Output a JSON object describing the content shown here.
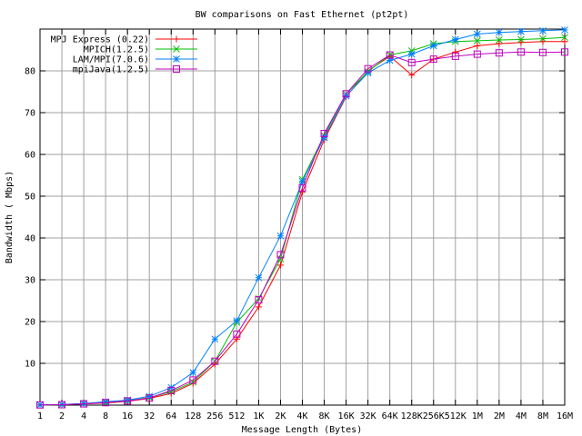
{
  "chart_data": {
    "type": "line",
    "title": "BW comparisons on Fast Ethernet (pt2pt)",
    "xlabel": "Message Length (Bytes)",
    "ylabel": "Bandwidth ( Mbps)",
    "x": [
      "1",
      "2",
      "4",
      "8",
      "16",
      "32",
      "64",
      "128",
      "256",
      "512",
      "1K",
      "2K",
      "4K",
      "8K",
      "16K",
      "32K",
      "64K",
      "128K",
      "256K",
      "512K",
      "1M",
      "2M",
      "4M",
      "8M",
      "16M"
    ],
    "ylim": [
      0,
      90
    ],
    "yticks": [
      10,
      20,
      30,
      40,
      50,
      60,
      70,
      80
    ],
    "grid": true,
    "legend_position": "top-left",
    "series": [
      {
        "name": "MPJ Express (0.22)",
        "color": "#ff0000",
        "marker": "plus",
        "values": [
          0.05,
          0.1,
          0.3,
          0.5,
          0.9,
          1.6,
          2.8,
          5.2,
          9.8,
          15.8,
          23.5,
          33.5,
          51.0,
          63.5,
          73.8,
          80.0,
          83.5,
          79.0,
          82.8,
          84.5,
          86.0,
          86.5,
          86.8,
          87.0,
          87.0
        ]
      },
      {
        "name": "MPICH(1.2.5)",
        "color": "#00c000",
        "marker": "x",
        "values": [
          0.05,
          0.1,
          0.35,
          0.6,
          1.0,
          1.8,
          3.2,
          5.5,
          10.5,
          19.8,
          25.5,
          35.0,
          54.0,
          64.5,
          74.5,
          79.8,
          83.8,
          84.8,
          86.5,
          87.0,
          87.2,
          87.4,
          87.5,
          87.7,
          88.0
        ]
      },
      {
        "name": "LAM/MPI(7.0.6)",
        "color": "#0080ff",
        "marker": "star",
        "values": [
          0.05,
          0.15,
          0.4,
          0.8,
          1.2,
          2.1,
          4.2,
          7.8,
          15.8,
          20.2,
          30.5,
          40.5,
          53.5,
          64.0,
          74.0,
          79.5,
          82.5,
          84.0,
          86.0,
          87.5,
          88.8,
          89.2,
          89.4,
          89.6,
          89.8
        ]
      },
      {
        "name": "mpiJava(1.2.5)",
        "color": "#c000c0",
        "marker": "square",
        "values": [
          0.05,
          0.1,
          0.3,
          0.6,
          1.0,
          1.7,
          3.5,
          6.0,
          10.5,
          17.0,
          25.2,
          36.0,
          52.0,
          65.0,
          74.5,
          80.5,
          83.8,
          82.0,
          82.8,
          83.5,
          84.0,
          84.3,
          84.5,
          84.4,
          84.5
        ]
      }
    ]
  }
}
